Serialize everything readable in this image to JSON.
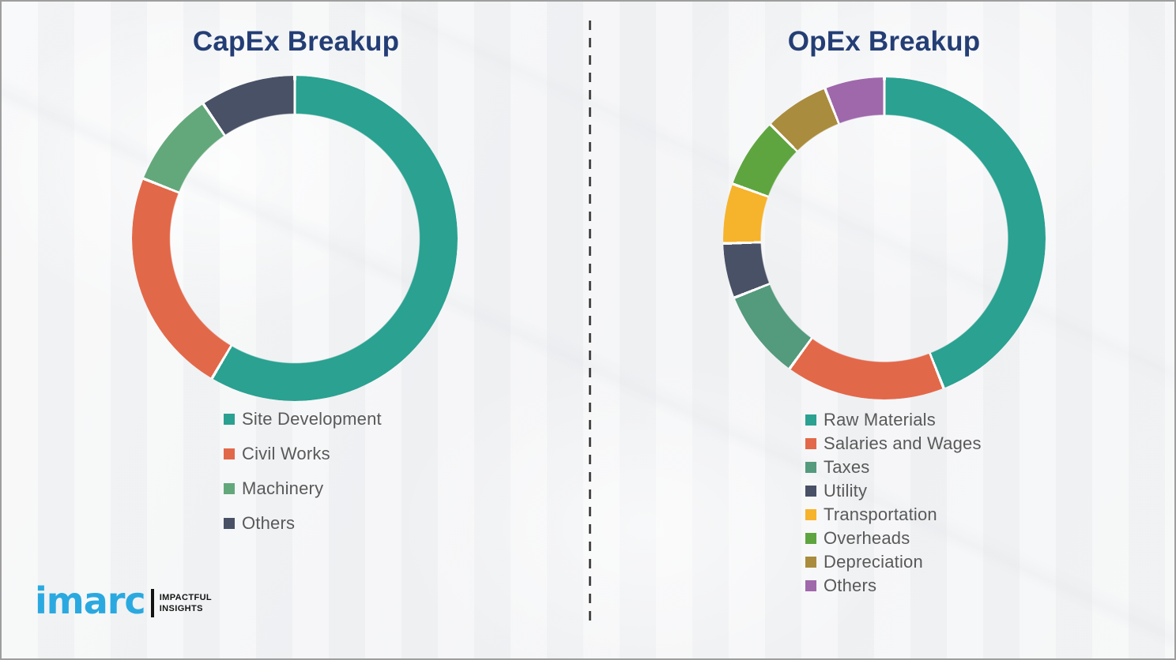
{
  "colors": {
    "background": "#f3f4f5",
    "page_border": "#9e9e9e",
    "title_text": "#243e75",
    "legend_text": "#595959",
    "divider": "#4c4c4c",
    "segment_gap": "#ffffff",
    "logo_blue": "#2aa9e0",
    "logo_black": "#141414"
  },
  "divider": {
    "style": "vertical-dashed"
  },
  "chart_data": [
    {
      "type": "donut",
      "title": "CapEx Breakup",
      "value_unit": "% share (estimated from arc angles; no numeric labels shown)",
      "start_angle_deg": 0,
      "direction": "clockwise",
      "legend_position": "below-left",
      "segments": [
        {
          "label": "Site Development",
          "value": 58.5,
          "color": "#2aa191"
        },
        {
          "label": "Civil Works",
          "value": 22.5,
          "color": "#e2684a"
        },
        {
          "label": "Machinery",
          "value": 9.5,
          "color": "#63a87b"
        },
        {
          "label": "Others",
          "value": 9.5,
          "color": "#495166"
        }
      ]
    },
    {
      "type": "donut",
      "title": "OpEx Breakup",
      "value_unit": "% share (estimated from arc angles; no numeric labels shown)",
      "start_angle_deg": 0,
      "direction": "clockwise",
      "legend_position": "below-left",
      "segments": [
        {
          "label": "Raw Materials",
          "value": 44,
          "color": "#2aa191"
        },
        {
          "label": "Salaries and Wages",
          "value": 16,
          "color": "#e2684a"
        },
        {
          "label": "Taxes",
          "value": 9,
          "color": "#549a7d"
        },
        {
          "label": "Utility",
          "value": 5.5,
          "color": "#495166"
        },
        {
          "label": "Transportation",
          "value": 6,
          "color": "#f6b32c"
        },
        {
          "label": "Overheads",
          "value": 7,
          "color": "#5ea53f"
        },
        {
          "label": "Depreciation",
          "value": 6.5,
          "color": "#a98c3d"
        },
        {
          "label": "Others",
          "value": 6,
          "color": "#9f68ab"
        }
      ]
    }
  ],
  "logo": {
    "brand": "imarc",
    "tagline_line1": "IMPACTFUL",
    "tagline_line2": "INSIGHTS"
  }
}
